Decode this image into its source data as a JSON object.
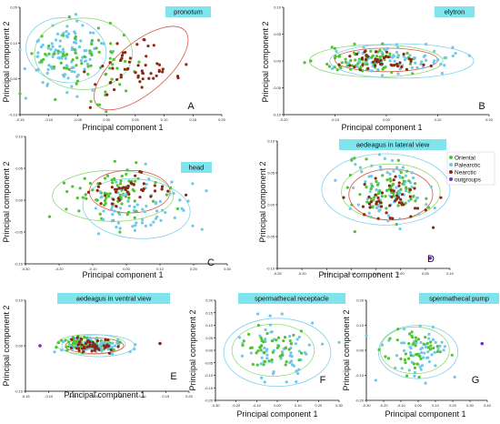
{
  "colors": {
    "Oriental": "#4fc330",
    "Palearctic": "#6ec8e8",
    "Nearctic": "#8b2a14",
    "outgroups": "#7a2ad0",
    "ellipse_oriental": "#8fdc7a",
    "ellipse_palearctic": "#7fd0ee",
    "ellipse_nearctic": "#d9574a"
  },
  "legend": {
    "items": [
      {
        "key": "Oriental",
        "label": "Oriental"
      },
      {
        "key": "Palearctic",
        "label": "Palearctic"
      },
      {
        "key": "Nearctic",
        "label": "Nearctic"
      },
      {
        "key": "outgroups",
        "label": "outgroups"
      }
    ]
  },
  "chart_data": [
    {
      "type": "scatter",
      "id": "A",
      "title": "pronotum",
      "letter": "A",
      "xlabel": "Principal component 1",
      "ylabel": "Principal component 2",
      "xlim": [
        -0.15,
        0.2
      ],
      "ylim": [
        -0.1,
        0.2
      ],
      "xticks": [
        "-0.15",
        "-0.10",
        "-0.05",
        "0.00",
        "0.05",
        "0.10",
        "0.15",
        "0.20"
      ],
      "yticks": [
        "-0.10",
        "0.00",
        "0.10",
        "0.20"
      ],
      "groups": [
        {
          "key": "Palearctic",
          "cx": -0.07,
          "cy": 0.07,
          "sx": 0.035,
          "sy": 0.045,
          "n": 110
        },
        {
          "key": "Oriental",
          "cx": -0.04,
          "cy": 0.05,
          "sx": 0.045,
          "sy": 0.045,
          "n": 70
        },
        {
          "key": "Nearctic",
          "cx": 0.05,
          "cy": 0.02,
          "sx": 0.04,
          "sy": 0.035,
          "n": 55
        }
      ],
      "ellipses": [
        {
          "key": "Palearctic",
          "cx": -0.07,
          "cy": 0.08,
          "rx": 0.07,
          "ry": 0.09,
          "angle": -10
        },
        {
          "key": "Oriental",
          "cx": -0.04,
          "cy": 0.07,
          "rx": 0.085,
          "ry": 0.1,
          "angle": 0
        },
        {
          "key": "Nearctic",
          "cx": 0.06,
          "cy": 0.03,
          "rx": 0.1,
          "ry": 0.07,
          "angle": 40
        }
      ]
    },
    {
      "type": "scatter",
      "id": "B",
      "title": "elytron",
      "letter": "B",
      "xlabel": "Principal component 1",
      "ylabel": "Principal component 2",
      "xlim": [
        -0.2,
        0.2
      ],
      "ylim": [
        -0.1,
        0.1
      ],
      "xticks": [
        "-0.20",
        "-0.10",
        "0.00",
        "0.10",
        "0.20"
      ],
      "yticks": [
        "-0.10",
        "-0.05",
        "0.00",
        "0.05",
        "0.10"
      ],
      "groups": [
        {
          "key": "Oriental",
          "cx": -0.04,
          "cy": 0.0,
          "sx": 0.05,
          "sy": 0.012,
          "n": 80
        },
        {
          "key": "Palearctic",
          "cx": 0.03,
          "cy": 0.0,
          "sx": 0.055,
          "sy": 0.015,
          "n": 75
        },
        {
          "key": "Nearctic",
          "cx": 0.0,
          "cy": 0.0,
          "sx": 0.04,
          "sy": 0.01,
          "n": 45
        }
      ],
      "ellipses": [
        {
          "key": "Oriental",
          "cx": -0.02,
          "cy": 0.0,
          "rx": 0.13,
          "ry": 0.03,
          "angle": 0
        },
        {
          "key": "Palearctic",
          "cx": 0.03,
          "cy": 0.0,
          "rx": 0.14,
          "ry": 0.032,
          "angle": 0
        },
        {
          "key": "Nearctic",
          "cx": 0.0,
          "cy": 0.002,
          "rx": 0.1,
          "ry": 0.022,
          "angle": 0
        }
      ]
    },
    {
      "type": "scatter",
      "id": "C",
      "title": "head",
      "letter": "C",
      "xlabel": "Principal component 1",
      "ylabel": "Principal component 2",
      "xlim": [
        -0.3,
        0.3
      ],
      "ylim": [
        -0.15,
        0.15
      ],
      "xticks": [
        "-0.30",
        "-0.20",
        "-0.10",
        "0.00",
        "0.10",
        "0.20",
        "0.30"
      ],
      "yticks": [
        "-0.10",
        "-0.05",
        "0.00",
        "0.05",
        "0.10"
      ],
      "groups": [
        {
          "key": "Oriental",
          "cx": -0.05,
          "cy": 0.01,
          "sx": 0.07,
          "sy": 0.03,
          "n": 80
        },
        {
          "key": "Palearctic",
          "cx": 0.04,
          "cy": -0.02,
          "sx": 0.07,
          "sy": 0.035,
          "n": 70
        },
        {
          "key": "Nearctic",
          "cx": 0.0,
          "cy": 0.02,
          "sx": 0.06,
          "sy": 0.025,
          "n": 45
        }
      ],
      "ellipses": [
        {
          "key": "Oriental",
          "cx": -0.04,
          "cy": 0.01,
          "rx": 0.18,
          "ry": 0.06,
          "angle": 0
        },
        {
          "key": "Palearctic",
          "cx": 0.03,
          "cy": -0.02,
          "rx": 0.16,
          "ry": 0.07,
          "angle": -5
        },
        {
          "key": "Nearctic",
          "cx": 0.01,
          "cy": 0.02,
          "rx": 0.12,
          "ry": 0.05,
          "angle": 0
        }
      ]
    },
    {
      "type": "scatter",
      "id": "D",
      "title": "aedeagus in lateral view",
      "letter": "D",
      "xlabel": "Principal component 1",
      "ylabel": "Principal component 2",
      "xlim": [
        -0.25,
        0.1
      ],
      "ylim": [
        -0.15,
        0.1
      ],
      "xticks": [
        "-0.25",
        "-0.20",
        "-0.15",
        "-0.10",
        "-0.05",
        "0.00",
        "0.05",
        "0.10"
      ],
      "yticks": [
        "-0.10",
        "-0.05",
        "0.00",
        "0.05",
        "0.10"
      ],
      "groups": [
        {
          "key": "Palearctic",
          "cx": -0.03,
          "cy": 0.0,
          "sx": 0.045,
          "sy": 0.035,
          "n": 75
        },
        {
          "key": "Oriental",
          "cx": -0.02,
          "cy": 0.0,
          "sx": 0.04,
          "sy": 0.025,
          "n": 65
        },
        {
          "key": "Nearctic",
          "cx": -0.02,
          "cy": -0.01,
          "sx": 0.035,
          "sy": 0.025,
          "n": 50
        }
      ],
      "ellipses": [
        {
          "key": "Palearctic",
          "cx": -0.03,
          "cy": 0.005,
          "rx": 0.13,
          "ry": 0.07,
          "angle": 0
        },
        {
          "key": "Oriental",
          "cx": -0.02,
          "cy": 0.0,
          "rx": 0.1,
          "ry": 0.055,
          "angle": 0
        },
        {
          "key": "Nearctic",
          "cx": -0.02,
          "cy": -0.005,
          "rx": 0.085,
          "ry": 0.05,
          "angle": 0
        }
      ],
      "outgroup_points": [
        [
          0.06,
          -0.13
        ]
      ]
    },
    {
      "type": "scatter",
      "id": "E",
      "title": "aedeagus in ventral view",
      "letter": "E",
      "xlabel": "Principal component 1",
      "ylabel": "Principal component 2",
      "xlim": [
        -0.2,
        0.25
      ],
      "ylim": [
        -0.1,
        0.1
      ],
      "xticks": [
        "-0.15",
        "-0.10",
        "-0.05",
        "0.00",
        "0.05",
        "0.10",
        "0.15",
        "0.20"
      ],
      "yticks": [
        "-0.10",
        "0.00",
        "0.10"
      ],
      "groups": [
        {
          "key": "Oriental",
          "cx": -0.03,
          "cy": 0.005,
          "sx": 0.04,
          "sy": 0.008,
          "n": 75
        },
        {
          "key": "Palearctic",
          "cx": 0.0,
          "cy": 0.0,
          "sx": 0.045,
          "sy": 0.009,
          "n": 70
        },
        {
          "key": "Nearctic",
          "cx": -0.01,
          "cy": 0.0,
          "sx": 0.035,
          "sy": 0.007,
          "n": 50
        }
      ],
      "ellipses": [
        {
          "key": "Oriental",
          "cx": -0.02,
          "cy": 0.003,
          "rx": 0.095,
          "ry": 0.022,
          "angle": 0
        },
        {
          "key": "Palearctic",
          "cx": 0.0,
          "cy": 0.0,
          "rx": 0.1,
          "ry": 0.024,
          "angle": 0
        },
        {
          "key": "Nearctic",
          "cx": -0.01,
          "cy": 0.0,
          "rx": 0.08,
          "ry": 0.017,
          "angle": 0
        }
      ],
      "outgroup_points": [
        [
          -0.16,
          0.0
        ]
      ],
      "nearctic_extra": [
        [
          0.17,
          0.005
        ]
      ]
    },
    {
      "type": "scatter",
      "id": "F",
      "title": "spermathecal receptacle",
      "letter": "F",
      "xlabel": "Principal component 1",
      "ylabel": "Principal component 2",
      "xlim": [
        -0.3,
        0.3
      ],
      "ylim": [
        -0.25,
        0.25
      ],
      "xticks": [
        "-0.30",
        "-0.20",
        "-0.10",
        "0.00",
        "0.10",
        "0.20",
        "0.30"
      ],
      "yticks": [
        "-0.20",
        "-0.15",
        "-0.10",
        "-0.05",
        "0.00",
        "0.05",
        "0.10",
        "0.15",
        "0.20"
      ],
      "groups": [
        {
          "key": "Palearctic",
          "cx": 0.0,
          "cy": 0.0,
          "sx": 0.1,
          "sy": 0.07,
          "n": 65
        },
        {
          "key": "Oriental",
          "cx": -0.03,
          "cy": 0.01,
          "sx": 0.08,
          "sy": 0.05,
          "n": 45
        }
      ],
      "ellipses": [
        {
          "key": "Palearctic",
          "cx": 0.0,
          "cy": -0.01,
          "rx": 0.26,
          "ry": 0.17,
          "angle": 0
        },
        {
          "key": "Oriental",
          "cx": -0.02,
          "cy": 0.0,
          "rx": 0.2,
          "ry": 0.13,
          "angle": 0
        }
      ]
    },
    {
      "type": "scatter",
      "id": "G",
      "title": "spermathecal pump",
      "letter": "G",
      "xlabel": "Principal component 1",
      "ylabel": "Principal component 2",
      "xlim": [
        -0.3,
        0.4
      ],
      "ylim": [
        -0.3,
        0.3
      ],
      "xticks": [
        "-0.30",
        "-0.20",
        "-0.10",
        "0.00",
        "0.10",
        "0.20",
        "0.30",
        "0.40"
      ],
      "yticks": [
        "-0.20",
        "-0.10",
        "0.00",
        "0.10",
        "0.20"
      ],
      "groups": [
        {
          "key": "Palearctic",
          "cx": 0.0,
          "cy": 0.0,
          "sx": 0.09,
          "sy": 0.08,
          "n": 55
        },
        {
          "key": "Oriental",
          "cx": -0.02,
          "cy": 0.0,
          "sx": 0.08,
          "sy": 0.06,
          "n": 45
        }
      ],
      "ellipses": [
        {
          "key": "Palearctic",
          "cx": 0.0,
          "cy": -0.01,
          "rx": 0.23,
          "ry": 0.16,
          "angle": 0
        },
        {
          "key": "Oriental",
          "cx": -0.02,
          "cy": 0.0,
          "rx": 0.2,
          "ry": 0.14,
          "angle": 0
        }
      ],
      "outgroup_points": [
        [
          0.37,
          0.04
        ]
      ]
    }
  ]
}
